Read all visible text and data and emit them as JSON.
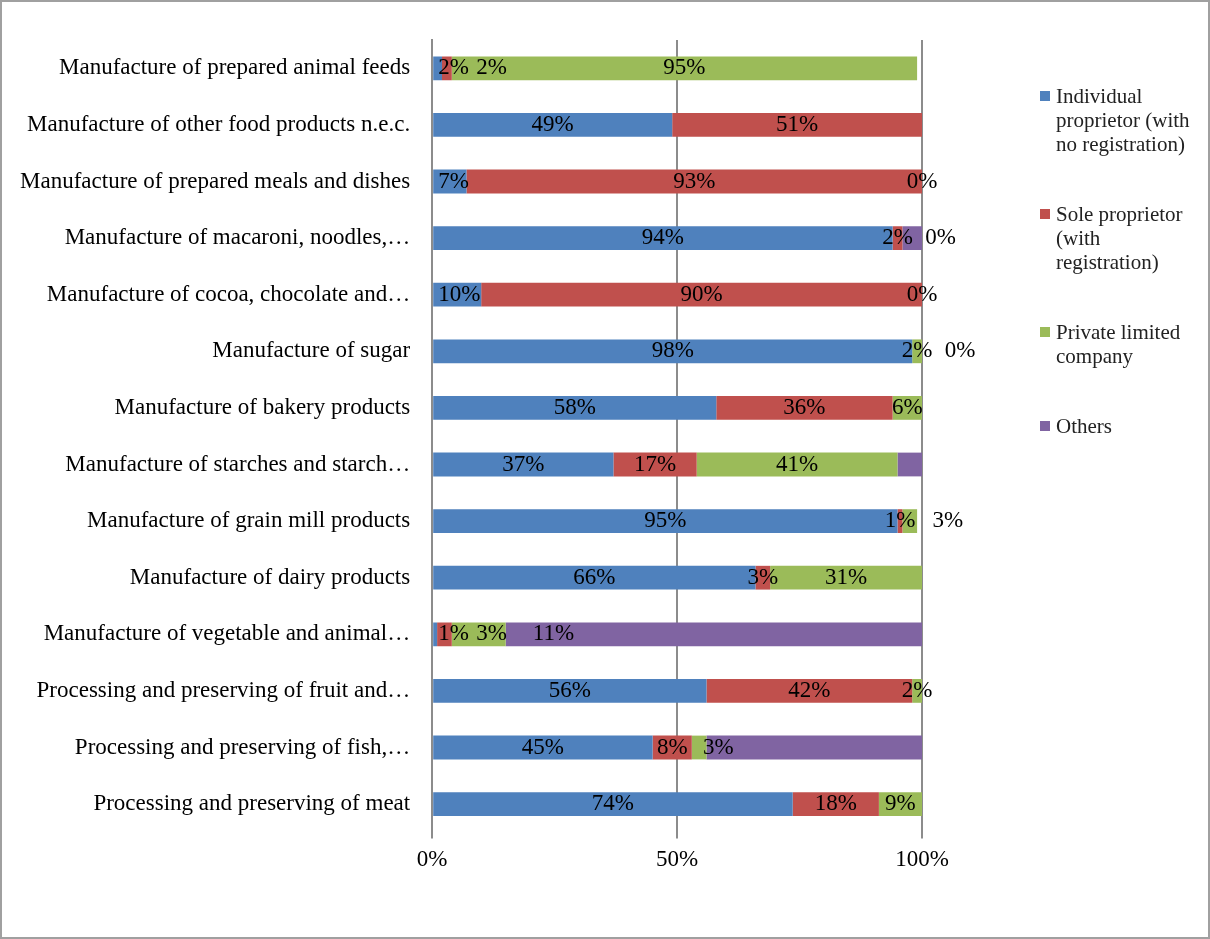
{
  "chart_data": {
    "type": "bar",
    "orientation": "horizontal",
    "stacked": true,
    "categories": [
      "Manufacture of prepared animal feeds",
      "Manufacture of other food products n.e.c.",
      "Manufacture of prepared meals and dishes",
      "Manufacture of macaroni, noodles,…",
      "Manufacture of cocoa, chocolate and…",
      "Manufacture of sugar",
      "Manufacture of bakery products",
      "Manufacture of starches and starch…",
      "Manufacture of grain mill products",
      "Manufacture of dairy products",
      "Manufacture of vegetable and animal…",
      "Processing and preserving of fruit and…",
      "Processing and preserving of fish,…",
      "Processing and preserving of meat"
    ],
    "series": [
      {
        "name": "Individual proprietor (with no registration)",
        "color": "#4f81bd",
        "values": [
          2,
          49,
          7,
          94,
          10,
          98,
          58,
          37,
          95,
          66,
          1,
          56,
          45,
          73.6
        ],
        "value_labels": [
          "2%",
          "49%",
          "7%",
          "94%",
          "10%",
          "98%",
          "58%",
          "37%",
          "95%",
          "66%",
          "1%",
          "56%",
          "45%",
          "74%"
        ]
      },
      {
        "name": "Sole proprietor (with registration)",
        "color": "#c0504d",
        "values": [
          2,
          51,
          93,
          2,
          90,
          null,
          36,
          17,
          1,
          3,
          3,
          42,
          8,
          17.6
        ],
        "value_labels": [
          "2%",
          "51%",
          "93%",
          "2%",
          "90%",
          null,
          "36%",
          "17%",
          "1%",
          "3%",
          "3%",
          "42%",
          "8%",
          "18%"
        ]
      },
      {
        "name": "Private limited company",
        "color": "#9bbb59",
        "values": [
          95,
          null,
          0,
          0,
          0,
          2,
          6,
          41,
          3,
          31,
          11,
          2,
          3,
          8.8
        ],
        "value_labels": [
          "95%",
          null,
          "0%",
          "0%",
          "0%",
          "2%",
          "6%",
          "41%",
          "3%",
          "31%",
          "11%",
          "2%",
          "3%",
          "9%"
        ]
      },
      {
        "name": "Others",
        "color": "#8064a2",
        "values": [
          null,
          null,
          null,
          4,
          null,
          0,
          null,
          5,
          null,
          null,
          85,
          null,
          44,
          null
        ],
        "value_labels": [
          null,
          null,
          null,
          null,
          null,
          "0%",
          null,
          null,
          null,
          null,
          null,
          null,
          null,
          null
        ]
      }
    ],
    "xlim": [
      0,
      100
    ],
    "xticks": [
      {
        "value": 0,
        "label": "0%"
      },
      {
        "value": 50,
        "label": "50%"
      },
      {
        "value": 100,
        "label": "100%"
      }
    ],
    "grid": "x",
    "legend": "right"
  }
}
